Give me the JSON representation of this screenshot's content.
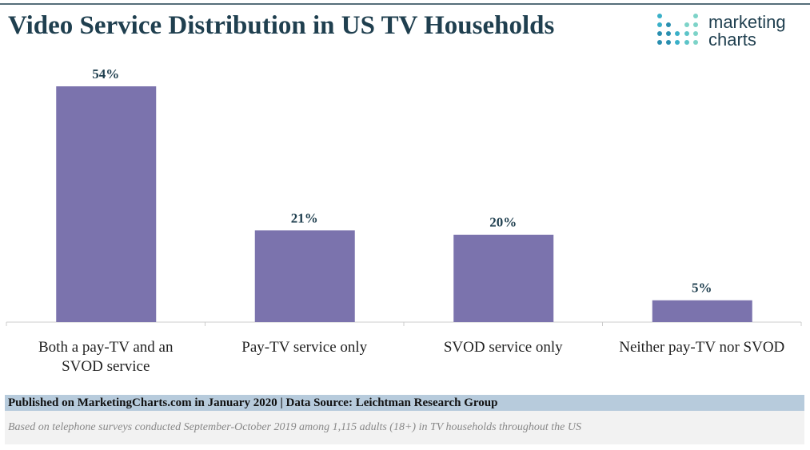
{
  "chart_data": {
    "type": "bar",
    "title": "Video Service Distribution in US TV Households",
    "categories": [
      "Both a pay-TV and an SVOD service",
      "Pay-TV service only",
      "SVOD service only",
      "Neither pay-TV nor SVOD"
    ],
    "values": [
      54,
      21,
      20,
      5
    ],
    "value_labels": [
      "54%",
      "21%",
      "20%",
      "5%"
    ],
    "color": "#7b73ad"
  },
  "logo": {
    "line1": "marketing",
    "line2": "charts"
  },
  "footer": {
    "source": "Published on MarketingCharts.com in January 2020 | Data Source: Leichtman Research Group",
    "note": "Based on telephone surveys conducted September-October 2019 among 1,115 adults (18+) in TV households throughout the US"
  }
}
